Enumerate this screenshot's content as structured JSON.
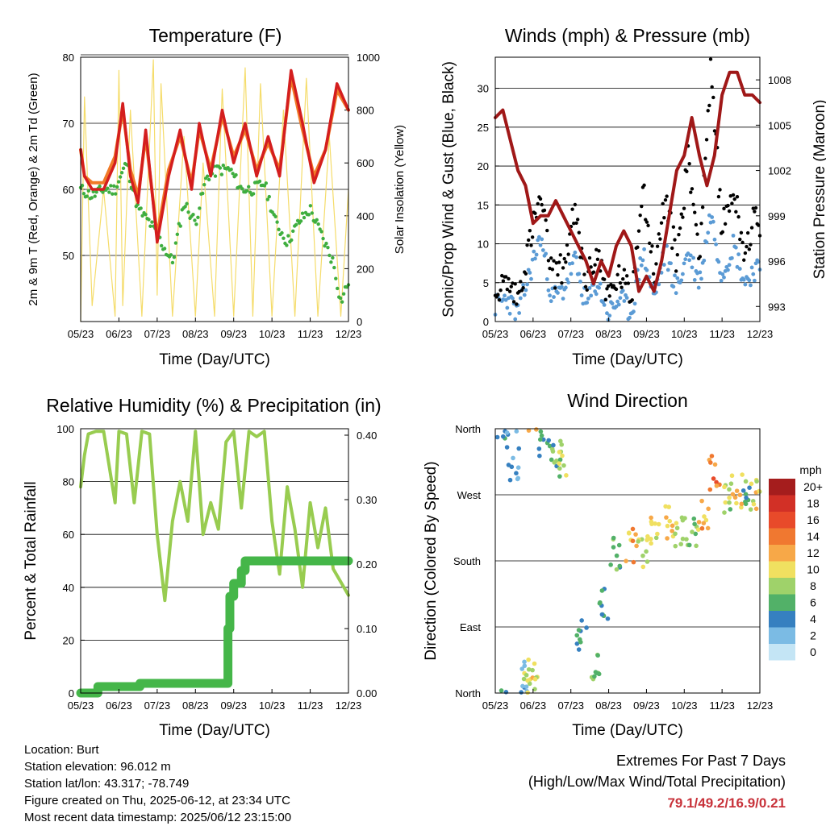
{
  "x_ticks": [
    "05/23",
    "06/23",
    "07/23",
    "08/23",
    "09/23",
    "10/23",
    "11/23",
    "12/23"
  ],
  "x_label": "Time (Day/UTC)",
  "colors": {
    "temp2m": "#d41e1e",
    "temp9m": "#f07a28",
    "dewpoint": "#3fae3f",
    "solar": "#f5dc6a",
    "wind": "#5b9bd5",
    "gust": "#000000",
    "pressure": "#a01818",
    "rh": "#98cc50",
    "precip": "#45b649",
    "extremes": "#c8323a"
  },
  "chart_data": [
    {
      "id": "temperature",
      "type": "line",
      "title": "Temperature (F)",
      "xlabel": "Time (Day/UTC)",
      "ylabel": "2m & 9m T (Red, Orange) & 2m Td (Green)",
      "ylabel_right": "Solar Insolation (Yellow)",
      "ylim": [
        40,
        80
      ],
      "yticks": [
        50,
        60,
        70,
        80
      ],
      "ylim_right": [
        0,
        1000
      ],
      "yticks_right": [
        0,
        200,
        400,
        600,
        800,
        1000
      ],
      "series": [
        {
          "key": "temp2m",
          "x": [
            0,
            0.1,
            0.3,
            0.6,
            0.9,
            1.1,
            1.3,
            1.5,
            1.7,
            2.0,
            2.3,
            2.6,
            2.9,
            3.1,
            3.4,
            3.7,
            4.0,
            4.3,
            4.6,
            4.9,
            5.2,
            5.5,
            5.8,
            6.1,
            6.4,
            6.7,
            7.0
          ],
          "values": [
            66,
            62,
            60,
            60,
            64,
            73,
            62,
            58,
            69,
            52,
            62,
            69,
            60,
            70,
            62,
            72,
            64,
            70,
            62,
            68,
            62,
            78,
            70,
            61,
            66,
            76,
            72
          ]
        },
        {
          "key": "temp9m",
          "x": [
            0,
            0.1,
            0.3,
            0.6,
            0.9,
            1.1,
            1.3,
            1.5,
            1.7,
            2.0,
            2.3,
            2.6,
            2.9,
            3.1,
            3.4,
            3.7,
            4.0,
            4.3,
            4.6,
            4.9,
            5.2,
            5.5,
            5.8,
            6.1,
            6.4,
            6.7,
            7.0
          ],
          "values": [
            66,
            62,
            61,
            61,
            65,
            72,
            63,
            59,
            68,
            53,
            63,
            68,
            61,
            69,
            63,
            71,
            65,
            69,
            63,
            67,
            63,
            77,
            69,
            62,
            66,
            75,
            72
          ]
        },
        {
          "key": "dewpoint",
          "x": [
            0,
            0.3,
            0.6,
            0.9,
            1.2,
            1.5,
            1.8,
            2.1,
            2.4,
            2.7,
            3.0,
            3.3,
            3.6,
            3.9,
            4.2,
            4.5,
            4.8,
            5.1,
            5.4,
            5.7,
            6.0,
            6.3,
            6.6,
            6.8,
            7.0
          ],
          "values": [
            60,
            59,
            60,
            60,
            64,
            57,
            55,
            52,
            49,
            58,
            55,
            62,
            63,
            63,
            60,
            60,
            61,
            55,
            52,
            55,
            57,
            53,
            49,
            43,
            46
          ]
        },
        {
          "key": "solar",
          "x": [
            0,
            0.1,
            0.3,
            0.6,
            0.9,
            1.0,
            1.1,
            1.3,
            1.6,
            1.9,
            2.0,
            2.1,
            2.4,
            2.7,
            3.0,
            3.2,
            3.5,
            3.7,
            4.0,
            4.3,
            4.5,
            4.7,
            5.0,
            5.3,
            5.6,
            5.9,
            6.2,
            6.5,
            6.8,
            7.0
          ],
          "values": [
            0,
            850,
            60,
            500,
            20,
            950,
            60,
            800,
            20,
            990,
            100,
            900,
            20,
            700,
            20,
            600,
            20,
            880,
            20,
            960,
            20,
            900,
            20,
            800,
            20,
            920,
            20,
            700,
            20,
            500
          ]
        }
      ]
    },
    {
      "id": "winds",
      "type": "scatter",
      "title": "Winds (mph) & Pressure (mb)",
      "xlabel": "Time (Day/UTC)",
      "ylabel": "Sonic/Prop Wind & Gust (Blue, Black)",
      "ylabel_right": "Station Pressure (Maroon)",
      "ylim": [
        0,
        34
      ],
      "yticks": [
        0,
        5,
        10,
        15,
        20,
        25,
        30
      ],
      "ylim_right": [
        992,
        1009.5
      ],
      "yticks_right": [
        993,
        996,
        999,
        1002,
        1005,
        1008
      ],
      "series": [
        {
          "key": "wind",
          "x": [
            0,
            0.3,
            0.6,
            0.9,
            1.2,
            1.5,
            1.8,
            2.1,
            2.4,
            2.7,
            3.0,
            3.3,
            3.6,
            3.9,
            4.2,
            4.5,
            4.8,
            5.1,
            5.4,
            5.7,
            6.0,
            6.3,
            6.6,
            6.9,
            7.0
          ],
          "values": [
            2,
            3,
            1,
            6,
            11,
            3,
            4,
            8,
            2,
            5,
            1,
            3,
            1,
            9,
            3,
            9,
            4,
            9,
            5,
            14,
            6,
            10,
            5,
            7,
            6
          ]
        },
        {
          "key": "gust",
          "x": [
            0,
            0.3,
            0.6,
            0.9,
            1.2,
            1.5,
            1.8,
            2.1,
            2.4,
            2.7,
            3.0,
            3.3,
            3.6,
            3.9,
            4.2,
            4.5,
            4.8,
            5.1,
            5.4,
            5.7,
            6.0,
            6.3,
            6.6,
            6.9,
            7.0
          ],
          "values": [
            4,
            5,
            3,
            10,
            16,
            6,
            7,
            14,
            5,
            9,
            3,
            6,
            3,
            18,
            6,
            16,
            8,
            21,
            9,
            32,
            12,
            17,
            9,
            14,
            10
          ]
        },
        {
          "key": "pressure",
          "x": [
            0,
            0.2,
            0.4,
            0.6,
            0.8,
            1.0,
            1.2,
            1.4,
            1.6,
            1.8,
            2.0,
            2.2,
            2.4,
            2.6,
            2.8,
            3.0,
            3.2,
            3.4,
            3.6,
            3.8,
            4.0,
            4.2,
            4.4,
            4.6,
            4.8,
            5.0,
            5.2,
            5.4,
            5.6,
            5.8,
            6.0,
            6.2,
            6.4,
            6.6,
            6.8,
            7.0
          ],
          "values": [
            1005.5,
            1006,
            1004,
            1002,
            1001,
            998.5,
            999,
            999,
            1000,
            999,
            998,
            997,
            996,
            994.5,
            996,
            995,
            997,
            998,
            997,
            994,
            995,
            994,
            996,
            999,
            1002,
            1003,
            1005.5,
            1003,
            1001,
            1003,
            1007,
            1008.5,
            1008.5,
            1007,
            1007,
            1006.5
          ]
        }
      ]
    },
    {
      "id": "humidity",
      "type": "line",
      "title": "Relative Humidity (%) & Precipitation (in)",
      "xlabel": "Time (Day/UTC)",
      "ylabel": "Percent & Total Rainfall",
      "ylim": [
        0,
        100
      ],
      "yticks": [
        0,
        20,
        40,
        60,
        80,
        100
      ],
      "ylim_right": [
        0,
        0.41
      ],
      "yticks_right": [
        "0.00",
        "0.10",
        "0.20",
        "0.30",
        "0.40"
      ],
      "series": [
        {
          "key": "rh",
          "x": [
            0,
            0.1,
            0.2,
            0.4,
            0.6,
            0.9,
            1.0,
            1.2,
            1.4,
            1.6,
            1.8,
            2.0,
            2.2,
            2.4,
            2.6,
            2.8,
            3.0,
            3.2,
            3.4,
            3.6,
            3.8,
            4.0,
            4.2,
            4.4,
            4.6,
            4.8,
            5.0,
            5.2,
            5.4,
            5.6,
            5.8,
            6.0,
            6.2,
            6.4,
            6.6,
            6.8,
            7.0
          ],
          "values": [
            78,
            90,
            98,
            99,
            99,
            72,
            99,
            98,
            72,
            99,
            98,
            60,
            35,
            65,
            80,
            65,
            99,
            60,
            72,
            62,
            95,
            99,
            70,
            99,
            97,
            99,
            65,
            45,
            78,
            62,
            40,
            72,
            55,
            70,
            47,
            42,
            37
          ]
        },
        {
          "key": "precip",
          "x": [
            0,
            0.4,
            0.45,
            1.5,
            1.55,
            3.8,
            3.85,
            3.9,
            4.0,
            4.2,
            4.3,
            7.0
          ],
          "values": [
            0,
            0,
            0.01,
            0.01,
            0.015,
            0.015,
            0.1,
            0.15,
            0.17,
            0.19,
            0.205,
            0.205
          ]
        }
      ]
    },
    {
      "id": "direction",
      "type": "scatter",
      "title": "Wind Direction",
      "xlabel": "Time (Day/UTC)",
      "ylabel": "Direction (Colored By Speed)",
      "categories": [
        "North",
        "East",
        "South",
        "West",
        "North"
      ],
      "ylim": [
        0,
        360
      ],
      "legend_unit": "mph",
      "legend_labels": [
        "20+",
        "18",
        "16",
        "14",
        "12",
        "10",
        "8",
        "6",
        "4",
        "2",
        "0"
      ],
      "legend_colors": [
        "#a51d1d",
        "#d23026",
        "#e84a2a",
        "#f07830",
        "#f7a848",
        "#f0e060",
        "#9fd26a",
        "#52b168",
        "#3680c0",
        "#7bbbe4",
        "#c4e5f5"
      ],
      "points": [
        {
          "x": 0.2,
          "dir": 340,
          "speed": 4
        },
        {
          "x": 0.5,
          "dir": 310,
          "speed": 3
        },
        {
          "x": 0.7,
          "dir": 20,
          "speed": 2
        },
        {
          "x": 0.9,
          "dir": 30,
          "speed": 9
        },
        {
          "x": 1.0,
          "dir": 20,
          "speed": 10
        },
        {
          "x": 1.3,
          "dir": 340,
          "speed": 5
        },
        {
          "x": 1.6,
          "dir": 330,
          "speed": 6
        },
        {
          "x": 1.8,
          "dir": 320,
          "speed": 8
        },
        {
          "x": 2.3,
          "dir": 80,
          "speed": 4
        },
        {
          "x": 2.6,
          "dir": 40,
          "speed": 7
        },
        {
          "x": 2.9,
          "dir": 120,
          "speed": 5
        },
        {
          "x": 3.2,
          "dir": 190,
          "speed": 6
        },
        {
          "x": 3.6,
          "dir": 200,
          "speed": 12
        },
        {
          "x": 3.9,
          "dir": 190,
          "speed": 9
        },
        {
          "x": 4.2,
          "dir": 220,
          "speed": 10
        },
        {
          "x": 4.6,
          "dir": 230,
          "speed": 11
        },
        {
          "x": 4.9,
          "dir": 215,
          "speed": 9
        },
        {
          "x": 5.2,
          "dir": 225,
          "speed": 7
        },
        {
          "x": 5.5,
          "dir": 240,
          "speed": 12
        },
        {
          "x": 5.8,
          "dir": 300,
          "speed": 14
        },
        {
          "x": 6.1,
          "dir": 270,
          "speed": 8
        },
        {
          "x": 6.4,
          "dir": 275,
          "speed": 11
        },
        {
          "x": 6.7,
          "dir": 280,
          "speed": 6
        },
        {
          "x": 6.9,
          "dir": 270,
          "speed": 10
        }
      ]
    }
  ],
  "info": {
    "location": "Location: Burt",
    "elevation": "Station elevation: 96.012 m",
    "latlon": "Station lat/lon: 43.317; -78.749",
    "created": "Figure created on Thu, 2025-06-12, at 23:34 UTC",
    "recent": "Most recent data timestamp: 2025/06/12 23:15:00"
  },
  "extremes": {
    "title": "Extremes For Past 7 Days",
    "subtitle": "(High/Low/Max Wind/Total Precipitation)",
    "values": "79.1/49.2/16.9/0.21"
  }
}
